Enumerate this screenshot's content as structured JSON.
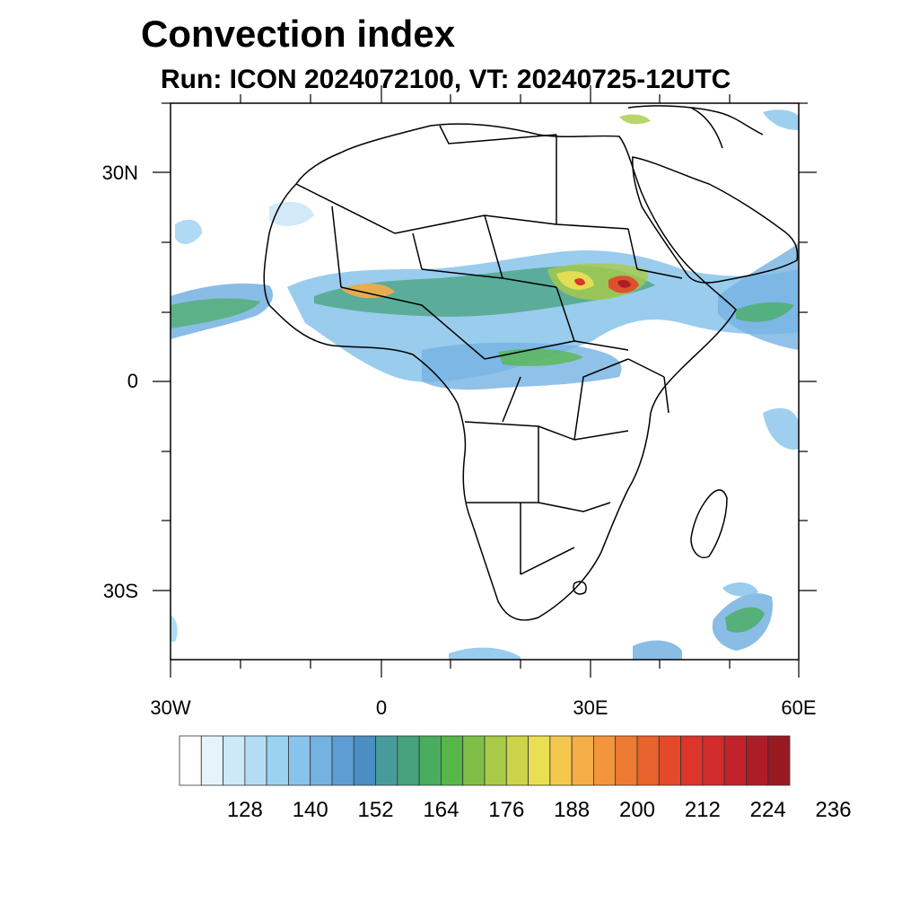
{
  "title": "Convection index",
  "subtitle": "Run: ICON 2024072100,  VT: 20240725-12UTC",
  "lat_labels": [
    "30N",
    "0",
    "30S"
  ],
  "lon_labels": [
    "30W",
    "0",
    "30E",
    "60E"
  ],
  "colorbar": {
    "labels": [
      "128",
      "140",
      "152",
      "164",
      "176",
      "188",
      "200",
      "212",
      "224",
      "236"
    ],
    "colors": [
      "#ffffff",
      "#e6f3fb",
      "#cde8f7",
      "#b4ddf4",
      "#9ad2f0",
      "#87c3ea",
      "#74b2e2",
      "#5e9dd4",
      "#4a8ec4",
      "#489b9b",
      "#47a37d",
      "#48ad5f",
      "#56b748",
      "#7ebf47",
      "#a8ca48",
      "#cdd34a",
      "#eadf52",
      "#f4c84f",
      "#f4ad47",
      "#f2953d",
      "#ee7b33",
      "#e8622c",
      "#e24a2a",
      "#dc3529",
      "#d12b2c",
      "#c0232b",
      "#ad1d28",
      "#971a22"
    ]
  },
  "map": {
    "lon_range": [
      -30,
      60
    ],
    "lat_range": [
      -40,
      40
    ]
  }
}
